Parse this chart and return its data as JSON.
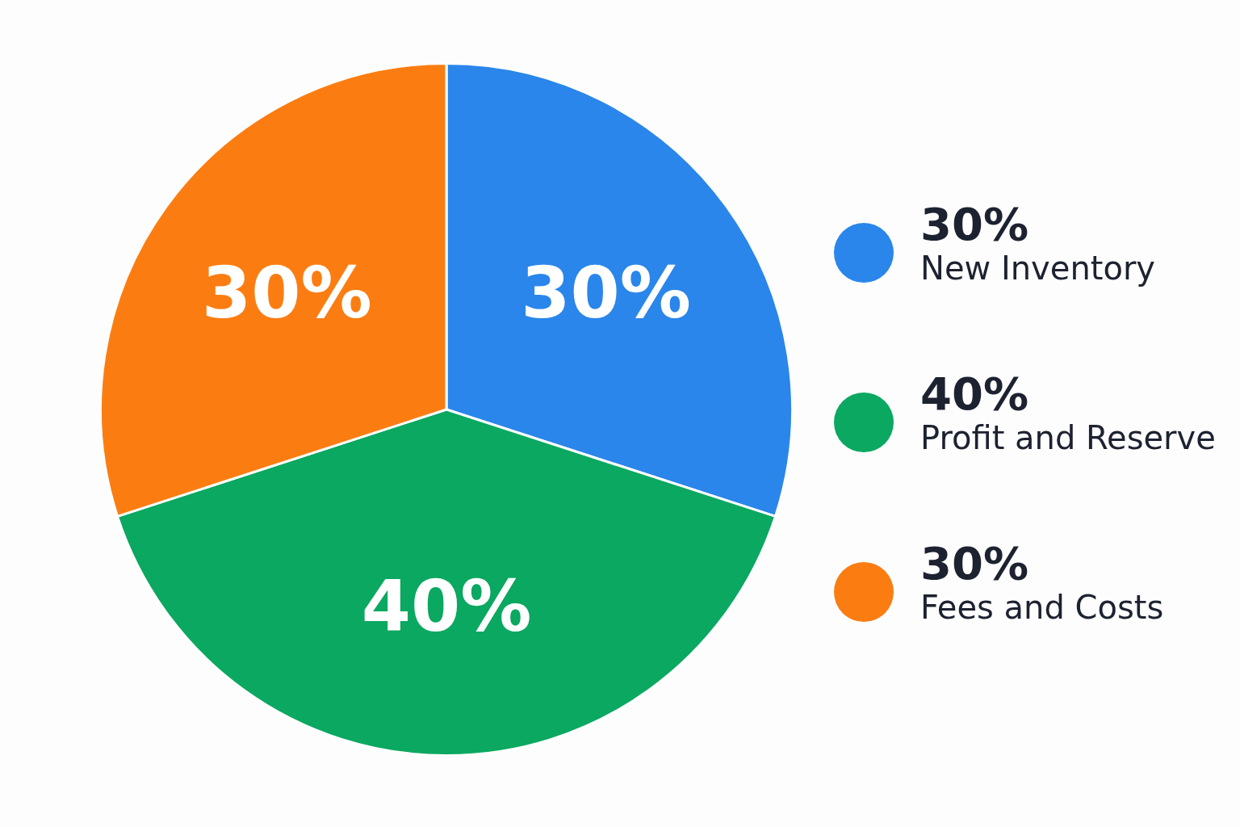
{
  "chart_data": {
    "type": "pie",
    "categories": [
      "New Inventory",
      "Profit and Reserve",
      "Fees and Costs"
    ],
    "values": [
      30,
      40,
      30
    ],
    "colors": [
      "#2a86ea",
      "#0aa860",
      "#fb7d12"
    ],
    "value_labels": [
      "30%",
      "40%",
      "30%"
    ],
    "legend": "right"
  }
}
